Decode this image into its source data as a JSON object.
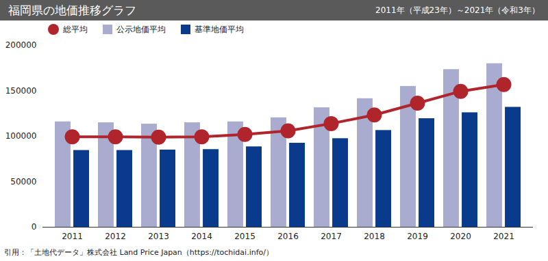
{
  "chart_data": {
    "type": "bar",
    "title": "福岡県の地価推移グラフ",
    "subtitle": "2011年（平成23年）～2021年（令和3年）",
    "caption": "引用：「土地代データ」株式会社 Land Price Japan（https://tochidai.info/）",
    "categories": [
      "2011",
      "2012",
      "2013",
      "2014",
      "2015",
      "2016",
      "2017",
      "2018",
      "2019",
      "2020",
      "2021"
    ],
    "series": [
      {
        "name": "総平均",
        "type": "line",
        "marker": "circle",
        "color": "#b0252b",
        "values": [
          99500,
          99500,
          99000,
          99500,
          102000,
          106000,
          114000,
          123500,
          136500,
          149500,
          157000
        ]
      },
      {
        "name": "公示地価平均",
        "type": "bar",
        "color": "#a9abcf",
        "values": [
          116000,
          115000,
          113500,
          115000,
          116000,
          120500,
          131500,
          141500,
          155000,
          173500,
          180000
        ]
      },
      {
        "name": "基準地価平均",
        "type": "bar",
        "color": "#0a3a8c",
        "values": [
          84500,
          84500,
          85000,
          85500,
          88500,
          92500,
          97500,
          106500,
          119500,
          126000,
          132000
        ]
      }
    ],
    "ylim": [
      0,
      200000
    ],
    "yticks": [
      0,
      50000,
      100000,
      150000,
      200000
    ],
    "grid": false,
    "legend": "top-left"
  }
}
